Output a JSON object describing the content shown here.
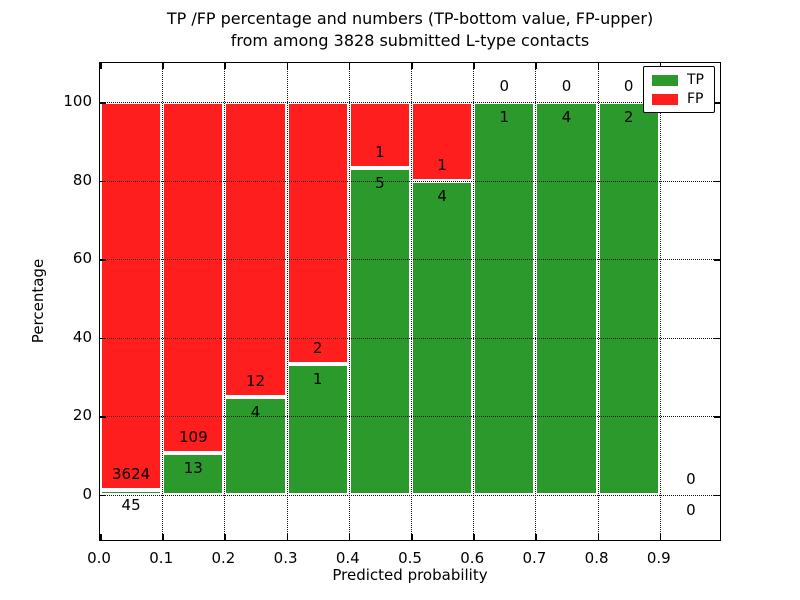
{
  "title_line1": "TP /FP percentage and numbers (TP-bottom value, FP-upper)",
  "title_line2": "from among 3828 submitted L-type contacts",
  "legend": {
    "tp_label": "TP",
    "fp_label": "FP"
  },
  "colors": {
    "tp": "#2b992b",
    "fp": "#ff1e1e",
    "grid": "#111111",
    "spine": "#000000",
    "bar_edge": "#ffffff"
  },
  "chart_data": {
    "type": "bar",
    "stacked": true,
    "title": "TP /FP percentage and numbers (TP-bottom value, FP-upper) from among 3828 submitted L-type contacts",
    "xlabel": "Predicted probability",
    "ylabel": "Percentage",
    "xlim": [
      0.0,
      1.0
    ],
    "ylim": [
      -12,
      110
    ],
    "bin_width": 0.1,
    "bin_starts": [
      0.0,
      0.1,
      0.2,
      0.3,
      0.4,
      0.5,
      0.6,
      0.7,
      0.8,
      0.9
    ],
    "xticks": [
      0.0,
      0.1,
      0.2,
      0.3,
      0.4,
      0.5,
      0.6,
      0.7,
      0.8,
      0.9
    ],
    "xtick_labels": [
      "0.0",
      "0.1",
      "0.2",
      "0.3",
      "0.4",
      "0.5",
      "0.6",
      "0.7",
      "0.8",
      "0.9"
    ],
    "yticks": [
      0,
      20,
      40,
      60,
      80,
      100
    ],
    "ytick_labels": [
      "0",
      "20",
      "40",
      "60",
      "80",
      "100"
    ],
    "grid": "dotted",
    "series": [
      {
        "name": "TP",
        "color": "#2b992b",
        "values": [
          45,
          13,
          4,
          1,
          5,
          4,
          1,
          4,
          2,
          0
        ]
      },
      {
        "name": "FP",
        "color": "#ff1e1e",
        "values": [
          3624,
          109,
          12,
          2,
          1,
          1,
          0,
          0,
          0,
          0
        ]
      }
    ],
    "tp_percent_of_bin": [
      1.2,
      10.7,
      25.0,
      33.3,
      83.3,
      80.0,
      100.0,
      100.0,
      100.0,
      null
    ],
    "total_contacts": 3828,
    "legend_position": "upper right",
    "legend_entries": [
      "TP",
      "FP"
    ]
  }
}
